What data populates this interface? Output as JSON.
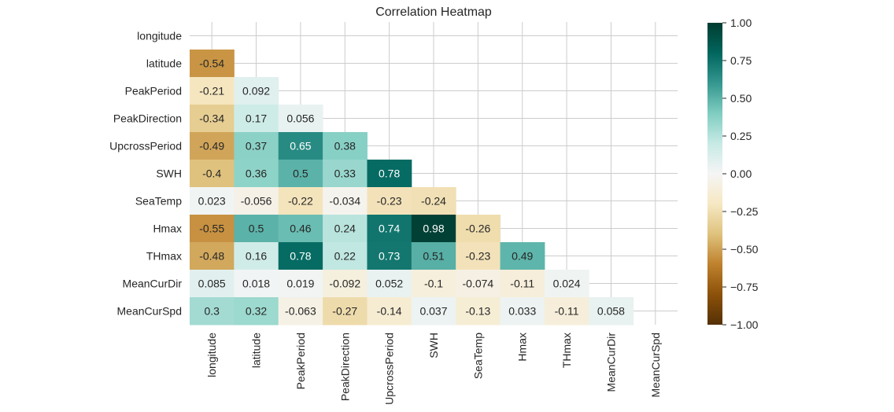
{
  "chart_data": {
    "type": "heatmap",
    "title": "Correlation Heatmap",
    "mask": "upper-triangle-including-diagonal",
    "variables": [
      "longitude",
      "latitude",
      "PeakPeriod",
      "PeakDirection",
      "UpcrossPeriod",
      "SWH",
      "SeaTemp",
      "Hmax",
      "THmax",
      "MeanCurDir",
      "MeanCurSpd"
    ],
    "cells": [
      {
        "row": "latitude",
        "col": "longitude",
        "value": -0.54,
        "label": "-0.54"
      },
      {
        "row": "PeakPeriod",
        "col": "longitude",
        "value": -0.21,
        "label": "-0.21"
      },
      {
        "row": "PeakPeriod",
        "col": "latitude",
        "value": 0.092,
        "label": "0.092"
      },
      {
        "row": "PeakDirection",
        "col": "longitude",
        "value": -0.34,
        "label": "-0.34"
      },
      {
        "row": "PeakDirection",
        "col": "latitude",
        "value": 0.17,
        "label": "0.17"
      },
      {
        "row": "PeakDirection",
        "col": "PeakPeriod",
        "value": 0.056,
        "label": "0.056"
      },
      {
        "row": "UpcrossPeriod",
        "col": "longitude",
        "value": -0.49,
        "label": "-0.49"
      },
      {
        "row": "UpcrossPeriod",
        "col": "latitude",
        "value": 0.37,
        "label": "0.37"
      },
      {
        "row": "UpcrossPeriod",
        "col": "PeakPeriod",
        "value": 0.65,
        "label": "0.65"
      },
      {
        "row": "UpcrossPeriod",
        "col": "PeakDirection",
        "value": 0.38,
        "label": "0.38"
      },
      {
        "row": "SWH",
        "col": "longitude",
        "value": -0.4,
        "label": "-0.4"
      },
      {
        "row": "SWH",
        "col": "latitude",
        "value": 0.36,
        "label": "0.36"
      },
      {
        "row": "SWH",
        "col": "PeakPeriod",
        "value": 0.5,
        "label": "0.5"
      },
      {
        "row": "SWH",
        "col": "PeakDirection",
        "value": 0.33,
        "label": "0.33"
      },
      {
        "row": "SWH",
        "col": "UpcrossPeriod",
        "value": 0.78,
        "label": "0.78"
      },
      {
        "row": "SeaTemp",
        "col": "longitude",
        "value": 0.023,
        "label": "0.023"
      },
      {
        "row": "SeaTemp",
        "col": "latitude",
        "value": -0.056,
        "label": "-0.056"
      },
      {
        "row": "SeaTemp",
        "col": "PeakPeriod",
        "value": -0.22,
        "label": "-0.22"
      },
      {
        "row": "SeaTemp",
        "col": "PeakDirection",
        "value": -0.034,
        "label": "-0.034"
      },
      {
        "row": "SeaTemp",
        "col": "UpcrossPeriod",
        "value": -0.23,
        "label": "-0.23"
      },
      {
        "row": "SeaTemp",
        "col": "SWH",
        "value": -0.24,
        "label": "-0.24"
      },
      {
        "row": "Hmax",
        "col": "longitude",
        "value": -0.55,
        "label": "-0.55"
      },
      {
        "row": "Hmax",
        "col": "latitude",
        "value": 0.5,
        "label": "0.5"
      },
      {
        "row": "Hmax",
        "col": "PeakPeriod",
        "value": 0.46,
        "label": "0.46"
      },
      {
        "row": "Hmax",
        "col": "PeakDirection",
        "value": 0.24,
        "label": "0.24"
      },
      {
        "row": "Hmax",
        "col": "UpcrossPeriod",
        "value": 0.74,
        "label": "0.74"
      },
      {
        "row": "Hmax",
        "col": "SWH",
        "value": 0.98,
        "label": "0.98"
      },
      {
        "row": "Hmax",
        "col": "SeaTemp",
        "value": -0.26,
        "label": "-0.26"
      },
      {
        "row": "THmax",
        "col": "longitude",
        "value": -0.48,
        "label": "-0.48"
      },
      {
        "row": "THmax",
        "col": "latitude",
        "value": 0.16,
        "label": "0.16"
      },
      {
        "row": "THmax",
        "col": "PeakPeriod",
        "value": 0.78,
        "label": "0.78"
      },
      {
        "row": "THmax",
        "col": "PeakDirection",
        "value": 0.22,
        "label": "0.22"
      },
      {
        "row": "THmax",
        "col": "UpcrossPeriod",
        "value": 0.73,
        "label": "0.73"
      },
      {
        "row": "THmax",
        "col": "SWH",
        "value": 0.51,
        "label": "0.51"
      },
      {
        "row": "THmax",
        "col": "SeaTemp",
        "value": -0.23,
        "label": "-0.23"
      },
      {
        "row": "THmax",
        "col": "Hmax",
        "value": 0.49,
        "label": "0.49"
      },
      {
        "row": "MeanCurDir",
        "col": "longitude",
        "value": 0.085,
        "label": "0.085"
      },
      {
        "row": "MeanCurDir",
        "col": "latitude",
        "value": 0.018,
        "label": "0.018"
      },
      {
        "row": "MeanCurDir",
        "col": "PeakPeriod",
        "value": 0.019,
        "label": "0.019"
      },
      {
        "row": "MeanCurDir",
        "col": "PeakDirection",
        "value": -0.092,
        "label": "-0.092"
      },
      {
        "row": "MeanCurDir",
        "col": "UpcrossPeriod",
        "value": 0.052,
        "label": "0.052"
      },
      {
        "row": "MeanCurDir",
        "col": "SWH",
        "value": -0.1,
        "label": "-0.1"
      },
      {
        "row": "MeanCurDir",
        "col": "SeaTemp",
        "value": -0.074,
        "label": "-0.074"
      },
      {
        "row": "MeanCurDir",
        "col": "Hmax",
        "value": -0.11,
        "label": "-0.11"
      },
      {
        "row": "MeanCurDir",
        "col": "THmax",
        "value": 0.024,
        "label": "0.024"
      },
      {
        "row": "MeanCurSpd",
        "col": "longitude",
        "value": 0.3,
        "label": "0.3"
      },
      {
        "row": "MeanCurSpd",
        "col": "latitude",
        "value": 0.32,
        "label": "0.32"
      },
      {
        "row": "MeanCurSpd",
        "col": "PeakPeriod",
        "value": -0.063,
        "label": "-0.063"
      },
      {
        "row": "MeanCurSpd",
        "col": "PeakDirection",
        "value": -0.27,
        "label": "-0.27"
      },
      {
        "row": "MeanCurSpd",
        "col": "UpcrossPeriod",
        "value": -0.14,
        "label": "-0.14"
      },
      {
        "row": "MeanCurSpd",
        "col": "SWH",
        "value": 0.037,
        "label": "0.037"
      },
      {
        "row": "MeanCurSpd",
        "col": "SeaTemp",
        "value": -0.13,
        "label": "-0.13"
      },
      {
        "row": "MeanCurSpd",
        "col": "Hmax",
        "value": 0.033,
        "label": "0.033"
      },
      {
        "row": "MeanCurSpd",
        "col": "THmax",
        "value": -0.11,
        "label": "-0.11"
      },
      {
        "row": "MeanCurSpd",
        "col": "MeanCurDir",
        "value": 0.058,
        "label": "0.058"
      }
    ],
    "colorbar": {
      "vmin": -1.0,
      "vmax": 1.0,
      "ticks": [
        1.0,
        0.75,
        0.5,
        0.25,
        0.0,
        -0.25,
        -0.5,
        -0.75,
        -1.0
      ],
      "tick_labels": [
        "1.00",
        "0.75",
        "0.50",
        "0.25",
        "0.00",
        "−0.25",
        "−0.50",
        "−0.75",
        "−1.00"
      ]
    },
    "colormap": "BrBG",
    "colormap_stops": [
      {
        "t": 0.0,
        "color": "#543005"
      },
      {
        "t": 0.1,
        "color": "#8c510a"
      },
      {
        "t": 0.2,
        "color": "#bf812d"
      },
      {
        "t": 0.3,
        "color": "#dfc27d"
      },
      {
        "t": 0.4,
        "color": "#f6e8c3"
      },
      {
        "t": 0.5,
        "color": "#f5f5f5"
      },
      {
        "t": 0.6,
        "color": "#c7eae5"
      },
      {
        "t": 0.7,
        "color": "#80cdc1"
      },
      {
        "t": 0.8,
        "color": "#35978f"
      },
      {
        "t": 0.9,
        "color": "#01665e"
      },
      {
        "t": 1.0,
        "color": "#003c30"
      }
    ],
    "grid": true,
    "text_color_dark": "#262626",
    "text_color_light": "#ffffff",
    "grid_color": "#cccccc"
  }
}
